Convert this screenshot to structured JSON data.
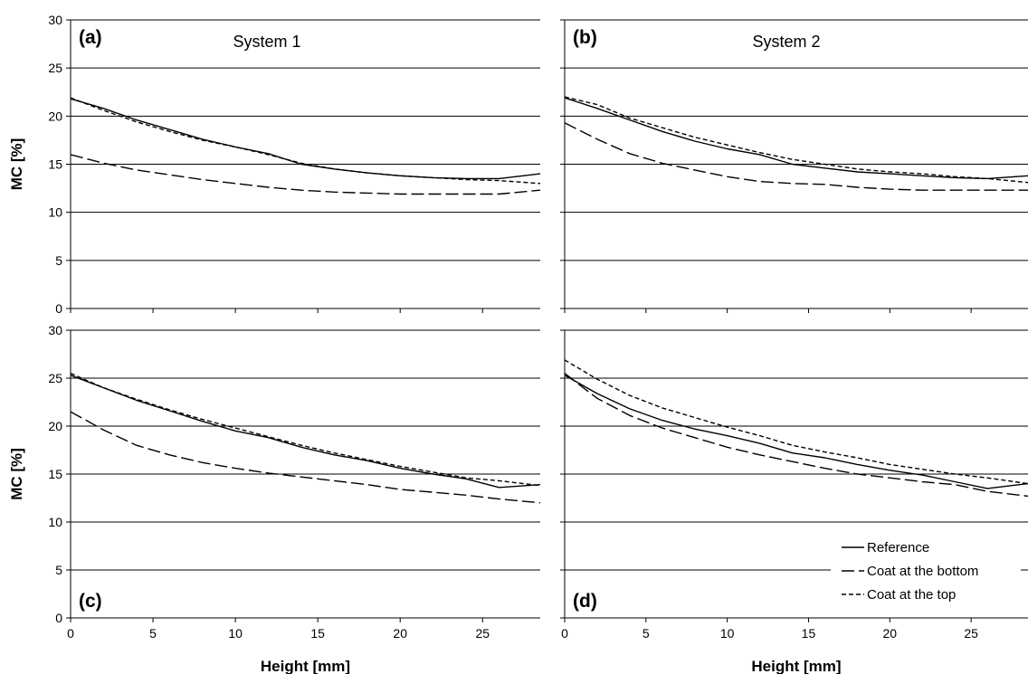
{
  "chart_data": [
    {
      "type": "line",
      "panel_label": "(a)",
      "title": "System 1",
      "xlabel": "Height [mm]",
      "ylabel": "MC [%]",
      "xlim": [
        0,
        28.5
      ],
      "ylim": [
        0,
        30
      ],
      "xticks": [
        0,
        5,
        10,
        15,
        20,
        25
      ],
      "yticks": [
        0,
        5,
        10,
        15,
        20,
        25,
        30
      ],
      "grid": "horizontal",
      "x": [
        0,
        2,
        4,
        6,
        8,
        10,
        12,
        14,
        16,
        18,
        20,
        22,
        24,
        26,
        28.5
      ],
      "series": [
        {
          "name": "Reference",
          "style": "solid",
          "values": [
            21.8,
            20.8,
            19.6,
            18.6,
            17.6,
            16.8,
            16.1,
            15.0,
            14.5,
            14.1,
            13.8,
            13.6,
            13.5,
            13.5,
            14.0
          ]
        },
        {
          "name": "Coat at the bottom",
          "style": "long-dash",
          "values": [
            16.0,
            15.1,
            14.4,
            13.9,
            13.4,
            13.0,
            12.6,
            12.3,
            12.1,
            12.0,
            11.9,
            11.9,
            11.9,
            11.9,
            12.3
          ]
        },
        {
          "name": "Coat at the top",
          "style": "short-dash",
          "values": [
            21.9,
            20.6,
            19.4,
            18.4,
            17.5,
            16.8,
            16.0,
            15.1,
            14.5,
            14.1,
            13.8,
            13.6,
            13.4,
            13.3,
            13.0
          ]
        }
      ]
    },
    {
      "type": "line",
      "panel_label": "(b)",
      "title": "System 2",
      "xlabel": "Height [mm]",
      "ylabel": "",
      "xlim": [
        0,
        28.5
      ],
      "ylim": [
        0,
        30
      ],
      "xticks": [
        0,
        5,
        10,
        15,
        20,
        25
      ],
      "yticks": [],
      "grid": "horizontal",
      "x": [
        0,
        2,
        4,
        6,
        8,
        10,
        12,
        14,
        16,
        18,
        20,
        22,
        24,
        26,
        28.5
      ],
      "series": [
        {
          "name": "Reference",
          "style": "solid",
          "values": [
            21.9,
            20.8,
            19.6,
            18.4,
            17.4,
            16.6,
            16.0,
            15.0,
            14.6,
            14.2,
            14.0,
            13.8,
            13.6,
            13.5,
            13.8
          ]
        },
        {
          "name": "Coat at the bottom",
          "style": "long-dash",
          "values": [
            19.3,
            17.6,
            16.1,
            15.1,
            14.4,
            13.7,
            13.2,
            13.0,
            12.9,
            12.6,
            12.4,
            12.3,
            12.3,
            12.3,
            12.3
          ]
        },
        {
          "name": "Coat at the top",
          "style": "short-dash",
          "values": [
            22.0,
            21.2,
            19.8,
            18.8,
            17.8,
            17.0,
            16.2,
            15.5,
            15.0,
            14.5,
            14.2,
            14.0,
            13.7,
            13.5,
            13.1
          ]
        }
      ]
    },
    {
      "type": "line",
      "panel_label": "(c)",
      "title": "",
      "xlabel": "Height [mm]",
      "ylabel": "MC [%]",
      "xlim": [
        0,
        28.5
      ],
      "ylim": [
        0,
        30
      ],
      "xticks": [
        0,
        5,
        10,
        15,
        20,
        25
      ],
      "yticks": [
        0,
        5,
        10,
        15,
        20,
        25,
        30
      ],
      "grid": "horizontal",
      "x": [
        0,
        2,
        4,
        6,
        8,
        10,
        12,
        14,
        16,
        18,
        20,
        22,
        24,
        26,
        28.5
      ],
      "series": [
        {
          "name": "Reference",
          "style": "solid",
          "values": [
            25.3,
            24.0,
            22.7,
            21.6,
            20.5,
            19.5,
            18.8,
            17.8,
            17.0,
            16.4,
            15.6,
            15.0,
            14.5,
            13.6,
            13.9
          ]
        },
        {
          "name": "Coat at the bottom",
          "style": "long-dash",
          "values": [
            21.5,
            19.6,
            18.0,
            17.0,
            16.2,
            15.6,
            15.1,
            14.7,
            14.3,
            13.9,
            13.4,
            13.1,
            12.8,
            12.4,
            12.0
          ]
        },
        {
          "name": "Coat at the top",
          "style": "short-dash",
          "values": [
            25.5,
            24.0,
            22.8,
            21.7,
            20.7,
            19.8,
            18.9,
            18.0,
            17.2,
            16.5,
            15.8,
            15.2,
            14.6,
            14.3,
            13.8
          ]
        }
      ]
    },
    {
      "type": "line",
      "panel_label": "(d)",
      "title": "",
      "xlabel": "Height [mm]",
      "ylabel": "",
      "xlim": [
        0,
        28.5
      ],
      "ylim": [
        0,
        30
      ],
      "xticks": [
        0,
        5,
        10,
        15,
        20,
        25
      ],
      "yticks": [],
      "grid": "horizontal",
      "legend": "bottom-right",
      "x": [
        0,
        2,
        4,
        6,
        8,
        10,
        12,
        14,
        16,
        18,
        20,
        22,
        24,
        26,
        28.5
      ],
      "series": [
        {
          "name": "Reference",
          "style": "solid",
          "values": [
            25.3,
            23.4,
            21.8,
            20.6,
            19.7,
            19.0,
            18.2,
            17.2,
            16.7,
            16.0,
            15.4,
            14.9,
            14.2,
            13.5,
            14.0
          ]
        },
        {
          "name": "Coat at the bottom",
          "style": "long-dash",
          "values": [
            25.5,
            22.9,
            21.1,
            19.8,
            18.8,
            17.8,
            17.0,
            16.3,
            15.6,
            15.0,
            14.6,
            14.2,
            13.9,
            13.2,
            12.7
          ]
        },
        {
          "name": "Coat at the top",
          "style": "short-dash",
          "values": [
            26.9,
            24.9,
            23.2,
            21.9,
            20.9,
            19.9,
            19.0,
            18.0,
            17.3,
            16.7,
            16.0,
            15.5,
            15.0,
            14.6,
            14.0
          ]
        }
      ]
    }
  ]
}
